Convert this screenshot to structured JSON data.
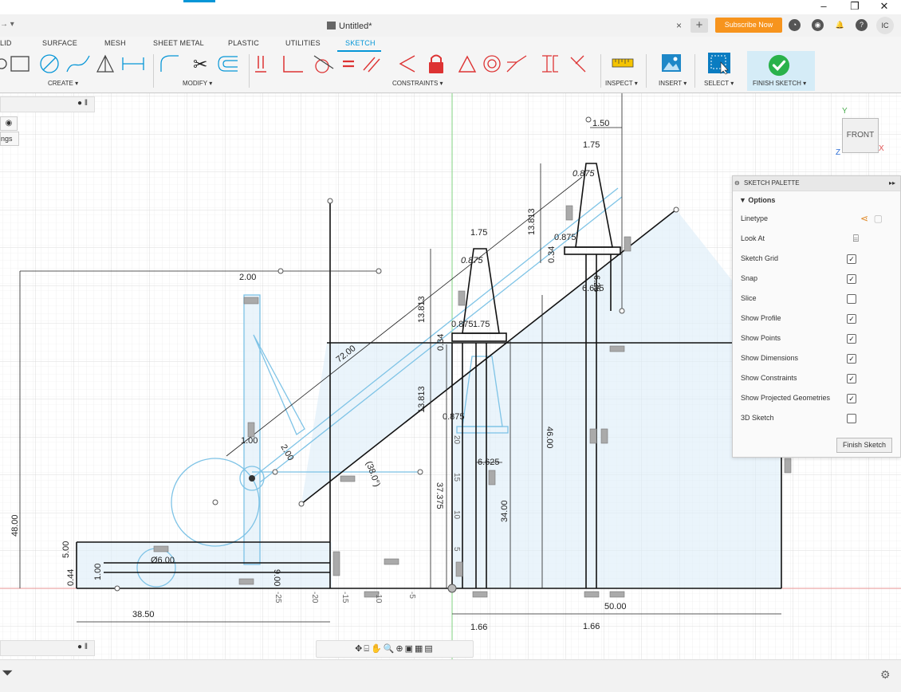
{
  "window": {
    "minimize": "–",
    "maximize": "❐",
    "close": "✕"
  },
  "tabbar": {
    "doc_title": "Untitled*",
    "close": "×",
    "plus": "+",
    "subscribe": "Subscribe Now",
    "avatar": "IC",
    "home_arrows": "→ ▾"
  },
  "ribbon": {
    "tabs": [
      "LID",
      "SURFACE",
      "MESH",
      "SHEET METAL",
      "PLASTIC",
      "UTILITIES",
      "SKETCH"
    ],
    "active_tab": "SKETCH",
    "groups": {
      "create": "CREATE ▾",
      "modify": "MODIFY ▾",
      "constraints": "CONSTRAINTS ▾",
      "inspect": "INSPECT ▾",
      "insert": "INSERT ▾",
      "select": "SELECT ▾",
      "finish": "FINISH SKETCH ▾"
    },
    "accent": "#0696d7"
  },
  "browser": {
    "partial_label": "ngs"
  },
  "palette": {
    "title": "SKETCH PALETTE",
    "options_label": "▼ Options",
    "rows": [
      {
        "label": "Linetype",
        "kind": "icon"
      },
      {
        "label": "Look At",
        "kind": "icon"
      },
      {
        "label": "Sketch Grid",
        "checked": true
      },
      {
        "label": "Snap",
        "checked": true
      },
      {
        "label": "Slice",
        "checked": false
      },
      {
        "label": "Show Profile",
        "checked": true
      },
      {
        "label": "Show Points",
        "checked": true
      },
      {
        "label": "Show Dimensions",
        "checked": true
      },
      {
        "label": "Show Constraints",
        "checked": true
      },
      {
        "label": "Show Projected Geometries",
        "checked": true
      },
      {
        "label": "3D Sketch",
        "checked": false
      }
    ],
    "finish_button": "Finish Sketch"
  },
  "viewcube": {
    "face": "FRONT",
    "axis_y": "Y",
    "axis_x": "X",
    "axis_z": "Z"
  },
  "dimensions": [
    "1.50",
    "1.75",
    "0.875",
    "13.813",
    "0.34",
    "0.875",
    "6.625",
    "1.75",
    "0.875",
    "72.00",
    "13.813",
    "0.34",
    "0.875",
    "1.75",
    "2.00",
    "13.813",
    "0.875",
    "6.625",
    "37.375",
    "48.00",
    "1.00",
    "2.00",
    "(38.0°)",
    "46.00",
    "34.00",
    "5.00",
    "Ø6.00",
    "1.00",
    "0.44",
    "38.50",
    "50.00",
    "1.66",
    "1.66",
    "9.00",
    "6.25"
  ],
  "axis_ticks": [
    "-25",
    "-20",
    "-15",
    "-10",
    "-5",
    "5",
    "10",
    "15",
    "20"
  ]
}
